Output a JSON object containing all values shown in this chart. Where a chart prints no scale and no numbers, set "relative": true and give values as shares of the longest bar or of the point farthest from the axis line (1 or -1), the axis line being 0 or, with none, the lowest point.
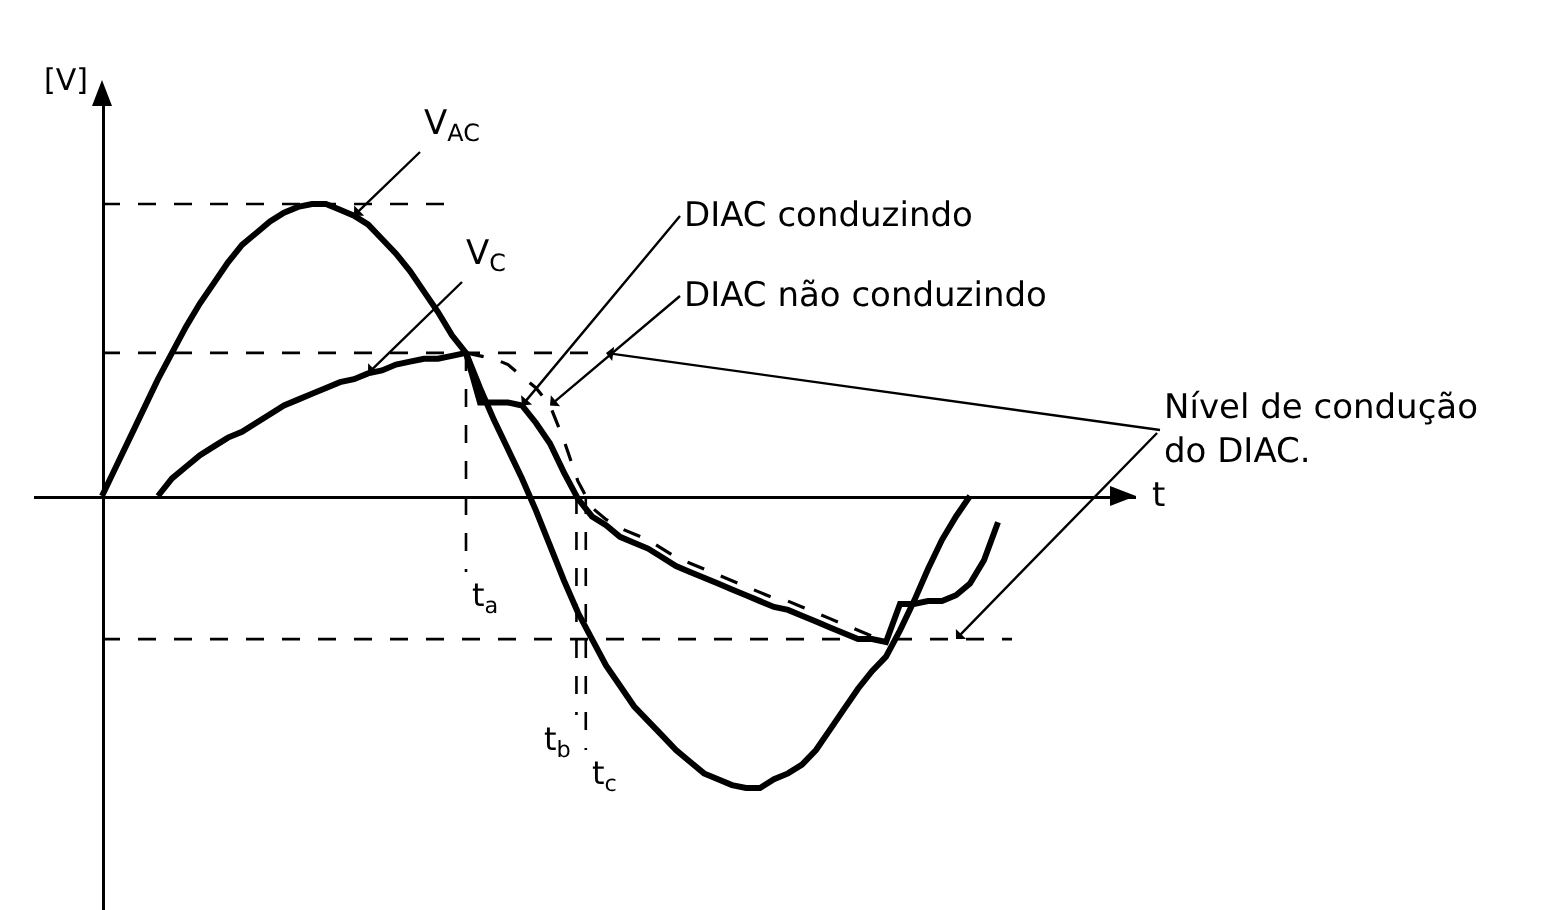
{
  "chart_data": {
    "type": "line",
    "relative": true,
    "xlabel": "t",
    "ylabel": "[V]",
    "marker": "none",
    "line_style": "solid",
    "categories": [
      null,
      null,
      null,
      null,
      null,
      null,
      null,
      null,
      null,
      null,
      null,
      null,
      null,
      null,
      null,
      null,
      null,
      null,
      null,
      null,
      null,
      null,
      null,
      null,
      null,
      null,
      null,
      null,
      null,
      null,
      null,
      null,
      null,
      null,
      null,
      null,
      null,
      null,
      null,
      null,
      null,
      null,
      null,
      null,
      null,
      null,
      null,
      null,
      null,
      null,
      null,
      null,
      null,
      null,
      null,
      null,
      null,
      null,
      null,
      null,
      null,
      null,
      null,
      null,
      null,
      null,
      null
    ],
    "series": [
      {
        "name": "V$_{AC}$",
        "color": "#000000",
        "values": [
          0,
          0.1,
          0.2,
          0.3,
          0.4,
          0.49,
          0.58,
          0.66,
          0.73,
          0.8,
          0.86,
          0.9,
          0.94,
          0.97,
          0.99,
          1.0,
          1.0,
          0.98,
          0.96,
          0.93,
          0.88,
          0.83,
          0.77,
          0.7,
          0.63,
          0.55,
          0.49,
          0.37,
          0.26,
          0.16,
          0.06,
          -0.05,
          -0.17,
          -0.29,
          -0.4,
          -0.49,
          -0.58,
          -0.65,
          -0.72,
          -0.77,
          -0.82,
          -0.87,
          -0.91,
          -0.95,
          -0.97,
          -0.99,
          -1.0,
          -1.0,
          -0.97,
          -0.95,
          -0.92,
          -0.87,
          -0.8,
          -0.73,
          -0.66,
          -0.6,
          -0.55,
          -0.46,
          -0.36,
          -0.25,
          -0.15,
          -0.07,
          0.0,
          null,
          null,
          null,
          null
        ]
      },
      {
        "name": "V$_{C}$",
        "color": "#000000",
        "values": [
          null,
          null,
          null,
          null,
          0.0,
          0.06,
          0.1,
          0.14,
          0.17,
          0.2,
          0.22,
          0.25,
          0.28,
          0.31,
          0.33,
          0.35,
          0.37,
          0.39,
          0.4,
          0.42,
          0.43,
          0.45,
          0.46,
          0.47,
          0.47,
          0.48,
          0.49,
          null,
          null,
          null,
          null,
          null,
          null,
          null,
          null,
          null,
          null,
          null,
          null,
          null,
          null,
          null,
          null,
          null,
          null,
          null,
          null,
          null,
          null,
          null,
          null,
          null,
          null,
          null,
          null,
          null,
          null,
          null,
          null,
          null,
          null,
          null,
          null,
          null,
          null,
          null,
          null
        ]
      },
      {
        "name": "DIAC conduzindo",
        "color": "#000000",
        "values": [
          null,
          null,
          null,
          null,
          null,
          null,
          null,
          null,
          null,
          null,
          null,
          null,
          null,
          null,
          null,
          null,
          null,
          null,
          null,
          null,
          null,
          null,
          null,
          null,
          null,
          null,
          0.49,
          0.32,
          0.32,
          0.32,
          0.31,
          0.25,
          0.18,
          0.08,
          -0.01,
          -0.07,
          -0.1,
          -0.14,
          -0.16,
          -0.18,
          -0.21,
          -0.24,
          -0.26,
          -0.28,
          -0.3,
          -0.32,
          -0.34,
          -0.36,
          -0.38,
          -0.39,
          -0.41,
          -0.43,
          -0.45,
          -0.47,
          -0.49,
          -0.49,
          -0.5,
          -0.37,
          -0.37,
          -0.36,
          -0.36,
          -0.34,
          -0.3,
          -0.22,
          -0.09,
          null,
          null
        ]
      },
      {
        "name": "DIAC não conduzindo",
        "color": "#000000",
        "line_style": "dashed",
        "values": [
          null,
          null,
          null,
          null,
          null,
          null,
          null,
          null,
          null,
          null,
          null,
          null,
          null,
          null,
          null,
          null,
          null,
          null,
          null,
          null,
          null,
          null,
          null,
          null,
          null,
          null,
          0.49,
          0.48,
          0.47,
          0.45,
          0.41,
          0.37,
          0.31,
          0.19,
          0.05,
          -0.04,
          -0.08,
          -0.11,
          -0.13,
          -0.15,
          -0.18,
          -0.21,
          -0.23,
          -0.25,
          -0.27,
          -0.29,
          -0.31,
          -0.33,
          -0.35,
          -0.36,
          -0.38,
          -0.4,
          -0.42,
          -0.44,
          -0.46,
          -0.48,
          null,
          null,
          null,
          null,
          null,
          null,
          null,
          null,
          null,
          null,
          null
        ]
      }
    ],
    "ref_lines": [
      {
        "axis": "y",
        "value": 1.0,
        "color": "#000000",
        "line_style": "dashed"
      },
      {
        "axis": "y",
        "value": 0.49,
        "label": "Nível de condução do DIAC.",
        "color": "#000000",
        "line_style": "dashed"
      },
      {
        "axis": "y",
        "value": -0.49,
        "color": "#000000",
        "line_style": "dashed"
      }
    ],
    "annotations": [
      "t$_{a}$",
      "t$_{b}$",
      "t$_{c}$"
    ]
  }
}
